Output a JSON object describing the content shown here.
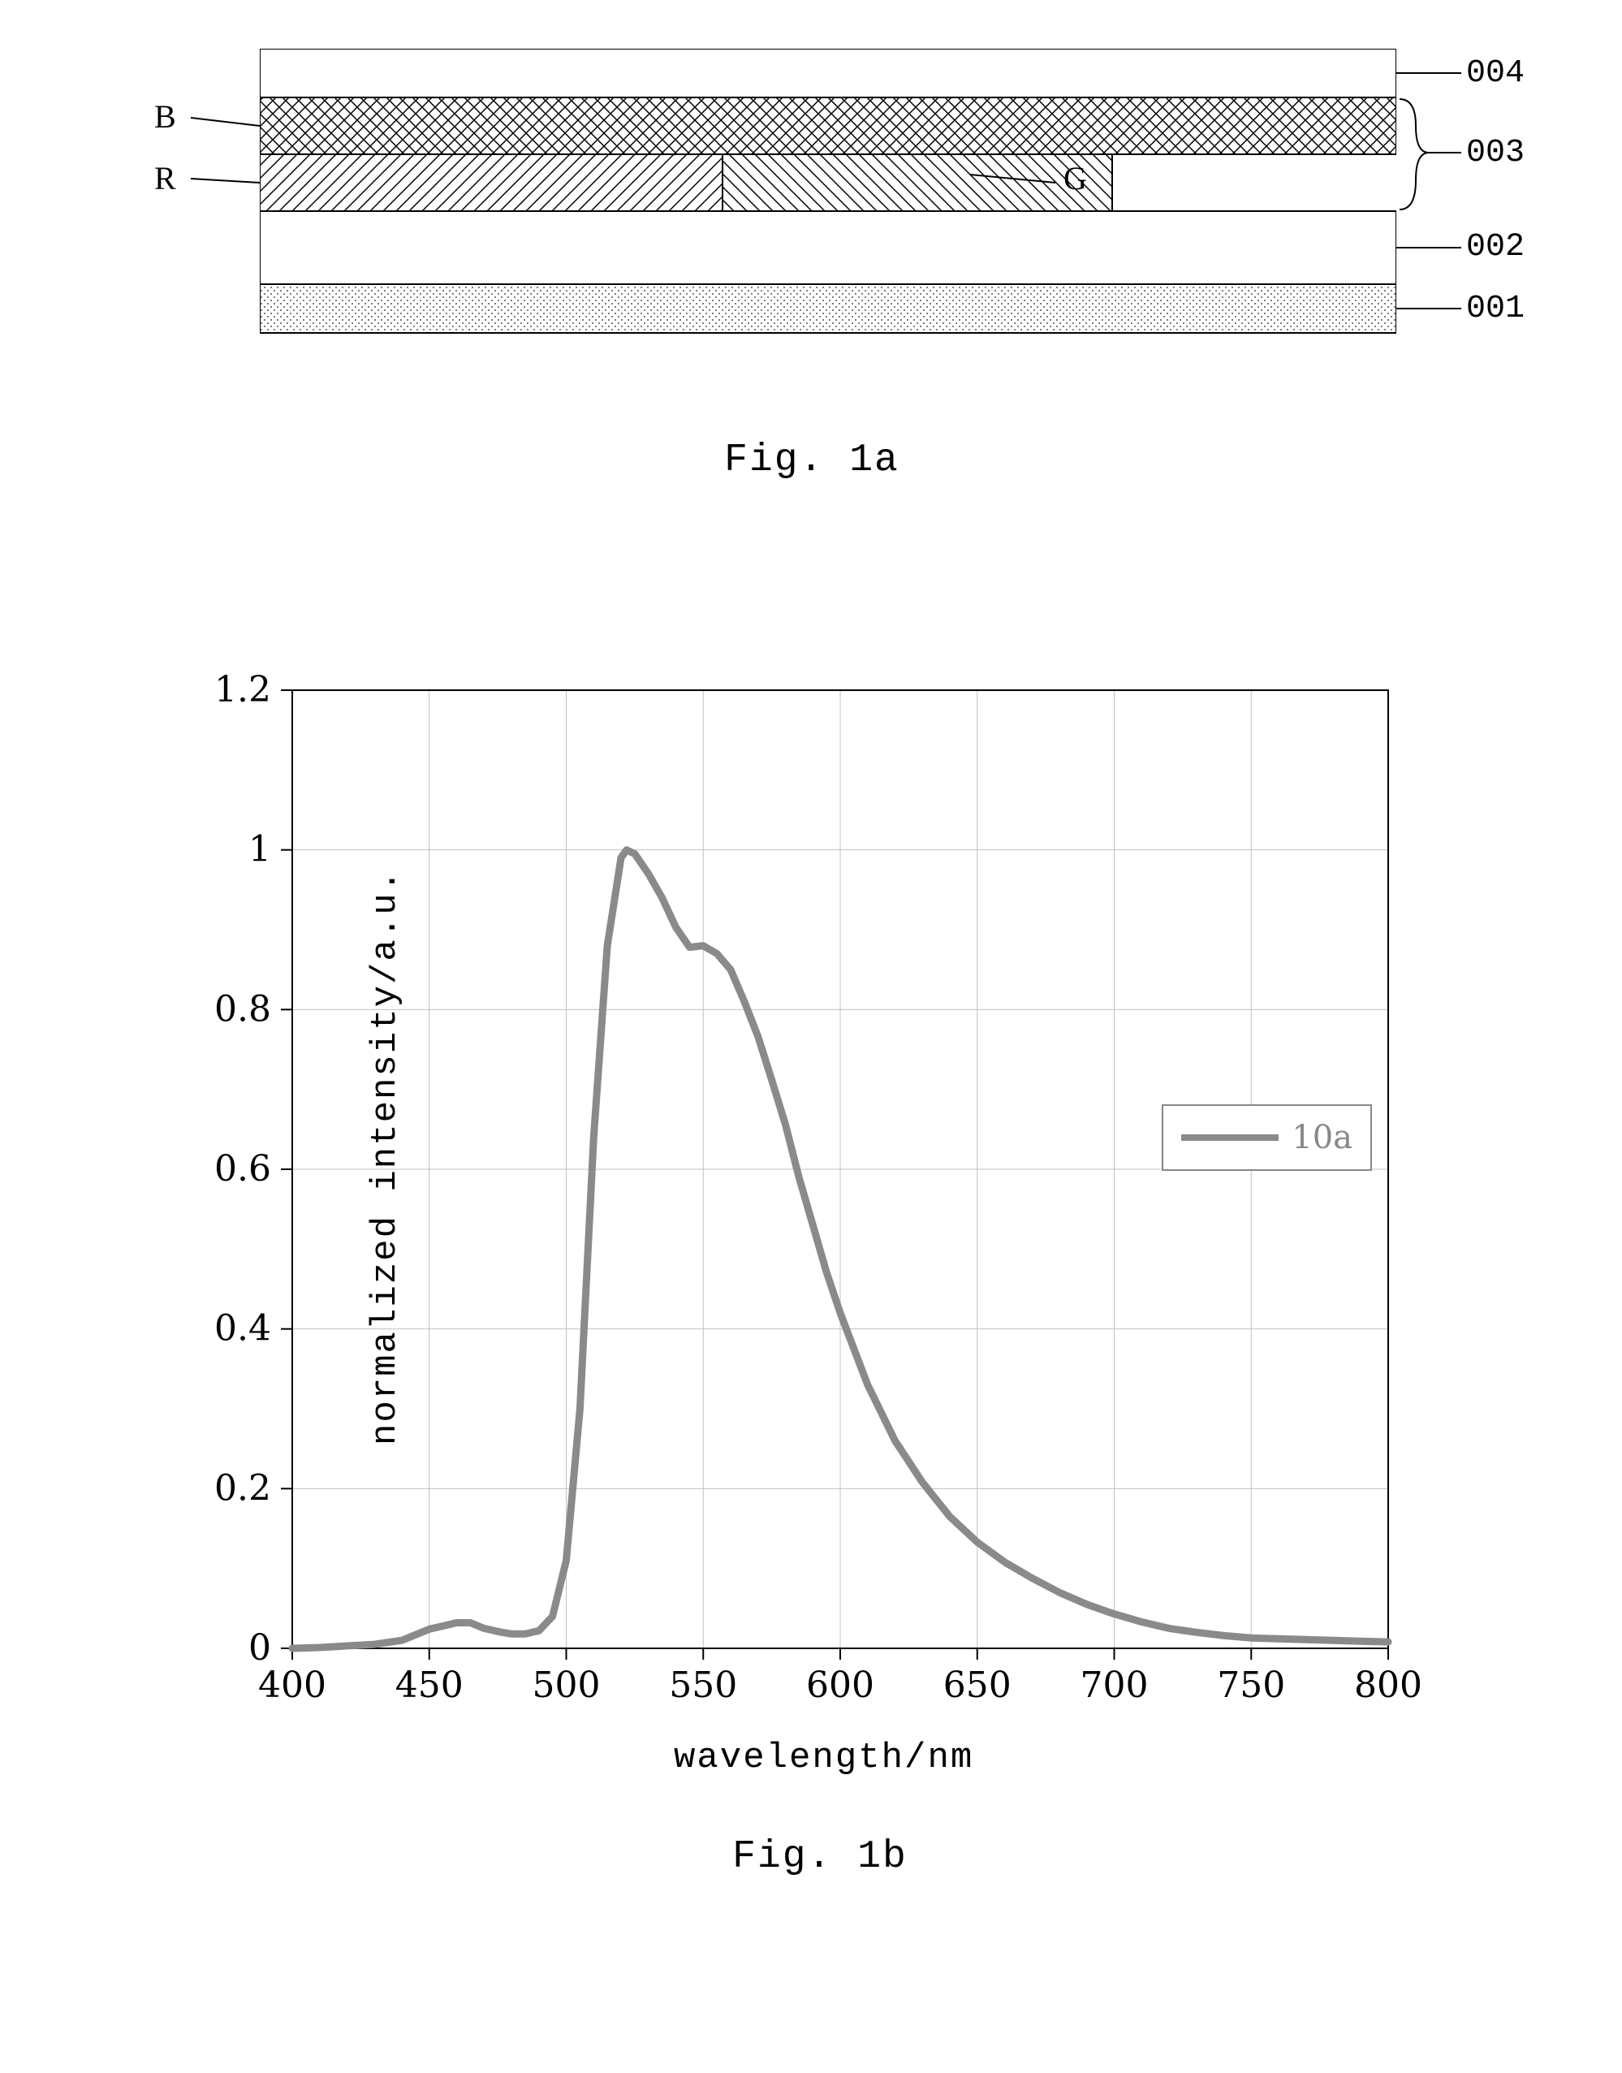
{
  "fig1a": {
    "caption": "Fig. 1a",
    "labels": {
      "B": "B",
      "R": "R",
      "G": "G",
      "l004": "004",
      "l003": "003",
      "l002": "002",
      "l001": "001"
    },
    "layers": {
      "l004_color": "#ffffff",
      "B_pattern": "crosshatch",
      "R_pattern": "diag-right",
      "G_pattern": "diag-left",
      "l002_color": "#ffffff",
      "l001_pattern": "dots",
      "border_color": "#000000"
    }
  },
  "fig1b": {
    "caption": "Fig. 1b",
    "type": "line",
    "xlabel": "wavelength/nm",
    "ylabel": "normalized intensity/a.u.",
    "xlim": [
      400,
      800
    ],
    "ylim": [
      0,
      1.2
    ],
    "xtick_step": 50,
    "ytick_step": 0.2,
    "xticks": [
      "400",
      "450",
      "500",
      "550",
      "600",
      "650",
      "700",
      "750",
      "800"
    ],
    "yticks": [
      "0",
      "0.2",
      "0.4",
      "0.6",
      "0.8",
      "1",
      "1.2"
    ],
    "label_fontsize": 44,
    "tick_fontsize": 44,
    "background_color": "#ffffff",
    "grid_color": "#c0c0c0",
    "grid_on": true,
    "axis_color": "#000000",
    "line_color": "#8a8a8a",
    "line_width": 9,
    "legend": {
      "label": "10a",
      "position": "right-middle"
    },
    "series": {
      "x": [
        400,
        410,
        420,
        430,
        440,
        450,
        455,
        460,
        465,
        470,
        475,
        480,
        485,
        490,
        495,
        500,
        505,
        510,
        515,
        520,
        522,
        525,
        530,
        535,
        540,
        545,
        550,
        555,
        560,
        565,
        570,
        575,
        580,
        585,
        590,
        595,
        600,
        610,
        620,
        630,
        640,
        650,
        660,
        670,
        680,
        690,
        700,
        710,
        720,
        730,
        740,
        750,
        760,
        770,
        780,
        790,
        800
      ],
      "y": [
        0.0,
        0.001,
        0.003,
        0.005,
        0.01,
        0.024,
        0.028,
        0.032,
        0.032,
        0.025,
        0.021,
        0.018,
        0.018,
        0.022,
        0.04,
        0.11,
        0.3,
        0.64,
        0.88,
        0.99,
        1.0,
        0.995,
        0.97,
        0.94,
        0.903,
        0.878,
        0.88,
        0.87,
        0.85,
        0.81,
        0.766,
        0.712,
        0.656,
        0.589,
        0.53,
        0.471,
        0.42,
        0.33,
        0.26,
        0.208,
        0.165,
        0.133,
        0.108,
        0.088,
        0.07,
        0.055,
        0.043,
        0.033,
        0.025,
        0.02,
        0.016,
        0.013,
        0.012,
        0.011,
        0.01,
        0.009,
        0.008
      ]
    }
  }
}
